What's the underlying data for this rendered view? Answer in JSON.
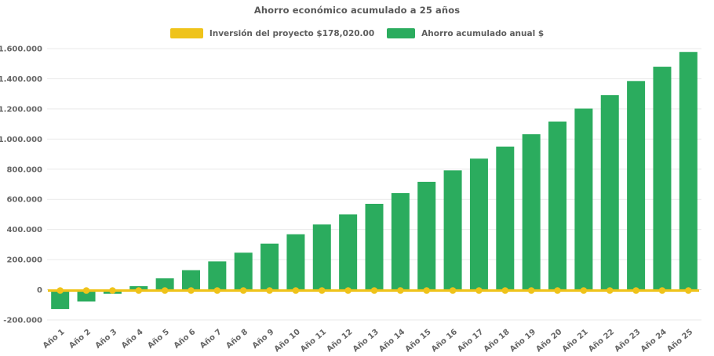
{
  "chart_data": {
    "type": "bar",
    "title": "Ahorro económico acumulado a 25 años",
    "legend_position": "top",
    "grid": true,
    "background_color": "#ffffff",
    "text_color": "#666666",
    "categories": [
      "Año 1",
      "Año 2",
      "Año 3",
      "Año 4",
      "Año 5",
      "Año 6",
      "Año 7",
      "Año 8",
      "Año 9",
      "Año 10",
      "Año 11",
      "Año 12",
      "Año 13",
      "Año 14",
      "Año 15",
      "Año 16",
      "Año 17",
      "Año 18",
      "Año 19",
      "Año 20",
      "Año 21",
      "Año 22",
      "Año 23",
      "Año 24",
      "Año 25"
    ],
    "series": [
      {
        "name": "Inversión del proyecto $178,020.00",
        "type": "line",
        "color": "#EFC31A",
        "marker": "circle",
        "values": [
          0,
          0,
          0,
          0,
          0,
          0,
          0,
          0,
          0,
          0,
          0,
          0,
          0,
          0,
          0,
          0,
          0,
          0,
          0,
          0,
          0,
          0,
          0,
          0,
          0
        ]
      },
      {
        "name": "Ahorro acumulado anual $",
        "type": "bar",
        "color": "#2BAC5E",
        "values": [
          -128000,
          -78000,
          -27000,
          24000,
          76000,
          130000,
          188000,
          246000,
          306000,
          368000,
          433000,
          500000,
          570000,
          642000,
          716000,
          792000,
          870000,
          950000,
          1032000,
          1116000,
          1202000,
          1292000,
          1385000,
          1480000,
          1578000
        ]
      }
    ],
    "yaxis": {
      "min": -200000,
      "max": 1600000,
      "tick_step": 200000,
      "tick_labels": [
        "-200.000",
        "0",
        "200.000",
        "400.000",
        "600.000",
        "800.000",
        "1.000.000",
        "1.200.000",
        "1.400.000",
        "1.600.000"
      ]
    }
  }
}
